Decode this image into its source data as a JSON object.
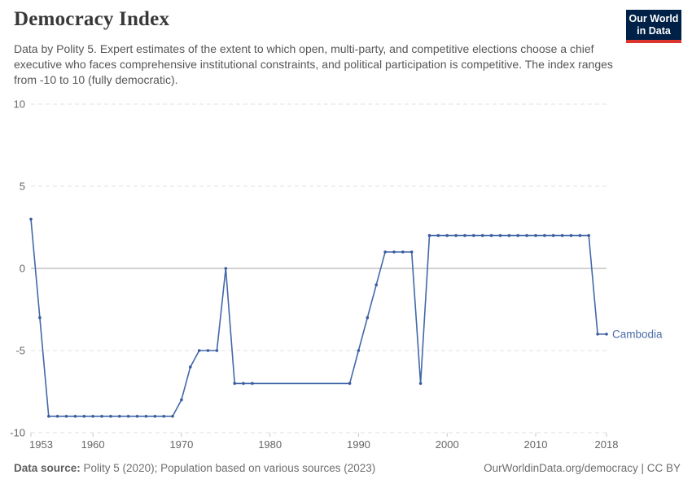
{
  "header": {
    "title": "Democracy Index",
    "subtitle": "Data by Polity 5. Expert estimates of the extent to which open, multi-party, and competitive elections choose a chief executive who faces comprehensive institutional constraints, and political participation is competitive. The index ranges from -10 to 10 (fully democratic).",
    "logo": {
      "line1": "Our World",
      "line2": "in Data",
      "bg_color": "#002147",
      "accent_color": "#dc352d"
    }
  },
  "chart_data": {
    "type": "line",
    "title": "Democracy Index",
    "xlabel": "",
    "ylabel": "",
    "xlim": [
      1953,
      2018
    ],
    "ylim": [
      -10,
      10
    ],
    "x_ticks": [
      1953,
      1960,
      1970,
      1980,
      1990,
      2000,
      2010,
      2018
    ],
    "y_ticks": [
      10,
      5,
      0,
      -5,
      -10
    ],
    "grid": "horizontal-dashed",
    "legend_position": "end-of-line-label",
    "series": [
      {
        "name": "Cambodia",
        "points": [
          [
            1953,
            3
          ],
          [
            1954,
            -3
          ],
          [
            1955,
            -9
          ],
          [
            1956,
            -9
          ],
          [
            1957,
            -9
          ],
          [
            1958,
            -9
          ],
          [
            1959,
            -9
          ],
          [
            1960,
            -9
          ],
          [
            1961,
            -9
          ],
          [
            1962,
            -9
          ],
          [
            1963,
            -9
          ],
          [
            1964,
            -9
          ],
          [
            1965,
            -9
          ],
          [
            1966,
            -9
          ],
          [
            1967,
            -9
          ],
          [
            1968,
            -9
          ],
          [
            1969,
            -9
          ],
          [
            1970,
            -8
          ],
          [
            1971,
            -6
          ],
          [
            1972,
            -5
          ],
          [
            1973,
            -5
          ],
          [
            1974,
            -5
          ],
          [
            1975,
            0
          ],
          [
            1976,
            -7
          ],
          [
            1977,
            -7
          ],
          [
            1978,
            -7
          ],
          [
            1989,
            -7
          ],
          [
            1990,
            -5
          ],
          [
            1991,
            -3
          ],
          [
            1992,
            -1
          ],
          [
            1993,
            1
          ],
          [
            1994,
            1
          ],
          [
            1995,
            1
          ],
          [
            1996,
            1
          ],
          [
            1997,
            -7
          ],
          [
            1998,
            2
          ],
          [
            1999,
            2
          ],
          [
            2000,
            2
          ],
          [
            2001,
            2
          ],
          [
            2002,
            2
          ],
          [
            2003,
            2
          ],
          [
            2004,
            2
          ],
          [
            2005,
            2
          ],
          [
            2006,
            2
          ],
          [
            2007,
            2
          ],
          [
            2008,
            2
          ],
          [
            2009,
            2
          ],
          [
            2010,
            2
          ],
          [
            2011,
            2
          ],
          [
            2012,
            2
          ],
          [
            2013,
            2
          ],
          [
            2014,
            2
          ],
          [
            2015,
            2
          ],
          [
            2016,
            2
          ],
          [
            2017,
            -4
          ],
          [
            2018,
            -4
          ]
        ]
      }
    ],
    "colors": {
      "line": "#4268a8",
      "marker": "#3a5c9e",
      "entity_label": "#4a6ba8",
      "axis_text": "#666666",
      "gridline": "#e0e0e0",
      "zero_line": "#a3a3a3",
      "tick": "#c8c8c8"
    }
  },
  "footer": {
    "data_source_label": "Data source:",
    "data_source_value": " Polity 5 (2020); Population based on various sources (2023)",
    "credit": "OurWorldinData.org/democracy | CC BY"
  }
}
